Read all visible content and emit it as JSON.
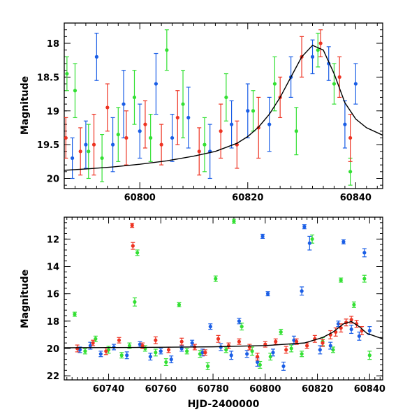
{
  "colors": {
    "green": "#33e033",
    "blue": "#1a5ee6",
    "red": "#ee3322",
    "model": "#000000"
  },
  "chart_data": [
    {
      "type": "scatter",
      "title": "",
      "xlabel": "",
      "ylabel": "Magnitude",
      "xlim": [
        60786,
        60845
      ],
      "ylim": [
        20.15,
        17.7
      ],
      "y_inverted": true,
      "xticks_major": [
        60800,
        60820,
        60840
      ],
      "xtick_labels": [
        "60800",
        "60820",
        "60840"
      ],
      "yticks_major": [
        18,
        18.5,
        19,
        19.5,
        20
      ],
      "ytick_labels": [
        "18",
        "18.5",
        "19",
        "19.5",
        "20"
      ],
      "grid": false,
      "legend": "none",
      "model_curve": {
        "x": [
          60786,
          60790,
          60795,
          60800,
          60805,
          60810,
          60814,
          60818,
          60820,
          60822,
          60824,
          60826,
          60828,
          60830,
          60832,
          60834,
          60836,
          60838,
          60840,
          60842,
          60845
        ],
        "y": [
          19.88,
          19.86,
          19.83,
          19.79,
          19.74,
          19.67,
          19.6,
          19.48,
          19.38,
          19.24,
          19.05,
          18.8,
          18.5,
          18.2,
          18.03,
          18.1,
          18.45,
          18.88,
          19.12,
          19.25,
          19.36
        ]
      },
      "series": [
        {
          "band": "green",
          "color": "#33e033",
          "x": [
            60786.5,
            60788,
            60790.5,
            60793,
            60796,
            60799,
            60802,
            60805,
            60808,
            60812,
            60816,
            60821,
            60825,
            60829,
            60833,
            60836,
            60839
          ],
          "y": [
            18.45,
            18.7,
            19.6,
            19.7,
            19.35,
            18.8,
            19.4,
            18.1,
            18.9,
            19.5,
            18.8,
            19.0,
            18.6,
            19.3,
            18.1,
            18.6,
            19.9
          ],
          "err": [
            0.25,
            0.4,
            0.4,
            0.35,
            0.4,
            0.4,
            0.35,
            0.3,
            0.5,
            0.4,
            0.35,
            0.3,
            0.4,
            0.35,
            0.25,
            0.3,
            0.2
          ]
        },
        {
          "band": "blue",
          "color": "#1a5ee6",
          "x": [
            60787.5,
            60790,
            60792,
            60795,
            60797,
            60800,
            60803,
            60806,
            60809,
            60813,
            60817,
            60820,
            60824,
            60828,
            60832,
            60835,
            60838,
            60840
          ],
          "y": [
            19.7,
            19.5,
            18.2,
            19.5,
            18.9,
            19.3,
            18.6,
            19.4,
            19.1,
            19.6,
            19.2,
            19.0,
            19.2,
            18.5,
            18.2,
            18.3,
            19.2,
            18.6
          ],
          "err": [
            0.3,
            0.35,
            0.35,
            0.4,
            0.5,
            0.4,
            0.45,
            0.35,
            0.45,
            0.4,
            0.35,
            0.4,
            0.4,
            0.3,
            0.25,
            0.25,
            0.35,
            0.3
          ]
        },
        {
          "band": "red",
          "color": "#ee3322",
          "x": [
            60786.3,
            60789,
            60791.5,
            60794,
            60797.5,
            60801,
            60804,
            60807,
            60811,
            60815,
            60818,
            60822,
            60826,
            60830,
            60833.5,
            60837,
            60839
          ],
          "y": [
            19.4,
            19.6,
            19.5,
            18.95,
            19.4,
            19.2,
            19.5,
            19.1,
            19.6,
            19.3,
            19.5,
            19.25,
            18.8,
            18.2,
            18.0,
            18.5,
            19.4
          ],
          "err": [
            0.3,
            0.35,
            0.45,
            0.35,
            0.4,
            0.35,
            0.3,
            0.4,
            0.35,
            0.4,
            0.35,
            0.45,
            0.3,
            0.3,
            0.2,
            0.3,
            0.35
          ]
        }
      ]
    },
    {
      "type": "scatter",
      "title": "",
      "xlabel": "HJD-2400000",
      "ylabel": "Magnitude",
      "xlim": [
        60723,
        60845
      ],
      "ylim": [
        22.3,
        10.4
      ],
      "y_inverted": true,
      "xticks_major": [
        60740,
        60760,
        60780,
        60800,
        60820,
        60840
      ],
      "xtick_labels": [
        "60740",
        "60760",
        "60780",
        "60800",
        "60820",
        "60840"
      ],
      "yticks_major": [
        12,
        14,
        16,
        18,
        20,
        22
      ],
      "ytick_labels": [
        "12",
        "14",
        "16",
        "18",
        "20",
        "22"
      ],
      "grid": false,
      "legend": "none",
      "model_curve": {
        "x": [
          60723,
          60750,
          60780,
          60800,
          60815,
          60822,
          60826,
          60830,
          60833,
          60836,
          60839,
          60842,
          60845
        ],
        "y": [
          19.95,
          19.93,
          19.88,
          19.79,
          19.6,
          19.2,
          18.8,
          18.2,
          18.03,
          18.4,
          18.9,
          19.1,
          19.3
        ]
      },
      "series": [
        {
          "band": "green",
          "color": "#33e033",
          "x": [
            60727,
            60731,
            60735,
            60740,
            60745,
            60748,
            60750,
            60751,
            60754,
            60758,
            60762,
            60767,
            60770,
            60775,
            60778,
            60781,
            60785,
            60788,
            60791,
            60795,
            60798,
            60802,
            60806,
            60810,
            60814,
            60818,
            60822,
            60826,
            60829,
            60834,
            60838,
            60840
          ],
          "y": [
            17.5,
            20.2,
            19.3,
            20.1,
            20.5,
            19.8,
            16.6,
            13.0,
            20.0,
            20.3,
            21.0,
            16.8,
            20.2,
            20.4,
            21.3,
            14.9,
            20.1,
            10.7,
            18.4,
            20.2,
            21.2,
            20.6,
            18.8,
            20.0,
            20.4,
            12.0,
            19.5,
            20.1,
            15.0,
            16.8,
            14.9,
            20.5
          ],
          "err": [
            0.15,
            0.2,
            0.2,
            0.25,
            0.2,
            0.2,
            0.3,
            0.2,
            0.2,
            0.25,
            0.25,
            0.15,
            0.2,
            0.25,
            0.25,
            0.2,
            0.2,
            0.15,
            0.25,
            0.3,
            0.25,
            0.25,
            0.2,
            0.25,
            0.2,
            0.3,
            0.3,
            0.2,
            0.15,
            0.2,
            0.25,
            0.3
          ]
        },
        {
          "band": "blue",
          "color": "#1a5ee6",
          "x": [
            60729,
            60733,
            60737,
            60742,
            60747,
            60752,
            60756,
            60760,
            60764,
            60768,
            60772,
            60776,
            60779,
            60783,
            60787,
            60790,
            60793,
            60797,
            60799,
            60801,
            60803,
            60807,
            60811,
            60814,
            60815,
            60817,
            60821,
            60825,
            60828,
            60830,
            60833,
            60836,
            60838,
            60840
          ],
          "y": [
            20.1,
            19.8,
            20.4,
            19.9,
            20.5,
            19.7,
            20.6,
            20.2,
            20.8,
            20.0,
            19.6,
            20.3,
            18.4,
            19.9,
            20.5,
            18.0,
            20.4,
            21.0,
            11.8,
            16.0,
            20.3,
            21.3,
            19.4,
            15.8,
            11.1,
            12.3,
            20.1,
            19.8,
            18.2,
            12.2,
            18.6,
            19.1,
            13.0,
            18.7
          ],
          "err": [
            0.2,
            0.25,
            0.2,
            0.2,
            0.25,
            0.2,
            0.25,
            0.2,
            0.25,
            0.2,
            0.2,
            0.25,
            0.2,
            0.25,
            0.3,
            0.2,
            0.25,
            0.3,
            0.15,
            0.15,
            0.25,
            0.3,
            0.3,
            0.3,
            0.15,
            0.5,
            0.3,
            0.25,
            0.2,
            0.15,
            0.3,
            0.3,
            0.3,
            0.3
          ]
        },
        {
          "band": "red",
          "color": "#ee3322",
          "x": [
            60728,
            60734,
            60739,
            60744,
            60749,
            60749.3,
            60753,
            60758,
            60763,
            60768,
            60773,
            60777,
            60782,
            60786,
            60790,
            60794,
            60797,
            60800,
            60804,
            60808,
            60812,
            60816,
            60819,
            60822,
            60825,
            60827,
            60829,
            60831,
            60833,
            60835,
            60837
          ],
          "y": [
            20.0,
            19.6,
            20.2,
            19.4,
            11.0,
            12.5,
            19.8,
            19.4,
            20.1,
            19.5,
            19.9,
            20.3,
            19.3,
            19.8,
            19.5,
            19.9,
            20.6,
            19.7,
            19.5,
            20.1,
            19.5,
            19.8,
            19.3,
            19.6,
            19.0,
            18.8,
            18.5,
            18.1,
            17.9,
            18.2,
            18.7
          ],
          "err": [
            0.25,
            0.2,
            0.25,
            0.2,
            0.15,
            0.25,
            0.2,
            0.25,
            0.2,
            0.25,
            0.2,
            0.2,
            0.25,
            0.2,
            0.2,
            0.2,
            0.25,
            0.2,
            0.2,
            0.25,
            0.2,
            0.2,
            0.25,
            0.25,
            0.3,
            0.3,
            0.3,
            0.25,
            0.25,
            0.25,
            0.3
          ]
        }
      ]
    }
  ]
}
